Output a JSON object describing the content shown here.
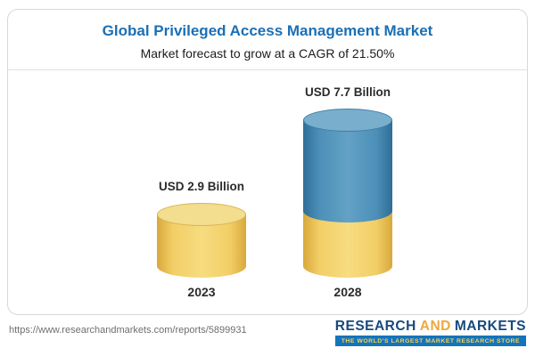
{
  "header": {
    "title": "Global Privileged Access Management Market",
    "subtitle": "Market forecast to grow at a CAGR of 21.50%"
  },
  "chart_data": {
    "type": "bar",
    "style": "3d-cylinder",
    "title": "Global Privileged Access Management Market",
    "subtitle": "Market forecast to grow at a CAGR of 21.50%",
    "categories": [
      "2023",
      "2028"
    ],
    "values": [
      2.9,
      7.7
    ],
    "unit": "USD Billion",
    "value_labels": [
      "USD 2.9 Billion",
      "USD 7.7 Billion"
    ],
    "cagr": "21.50%",
    "legend": "none",
    "colors": {
      "title_text": "#1B6FB5",
      "bar_2023": "#F2CE66",
      "bar_2028": "#4D8FB8",
      "bar_2028_base_segment": "#F2CE66"
    }
  },
  "bars": [
    {
      "value_label": "USD 2.9 Billion",
      "year": "2023"
    },
    {
      "value_label": "USD 7.7 Billion",
      "year": "2028"
    }
  ],
  "footer": {
    "source_url": "https://www.researchandmarkets.com/reports/5899931",
    "logo": {
      "word1": "RESEARCH",
      "word2": "AND",
      "word3": "MARKETS",
      "tagline": "THE WORLD'S LARGEST MARKET RESEARCH STORE"
    }
  }
}
